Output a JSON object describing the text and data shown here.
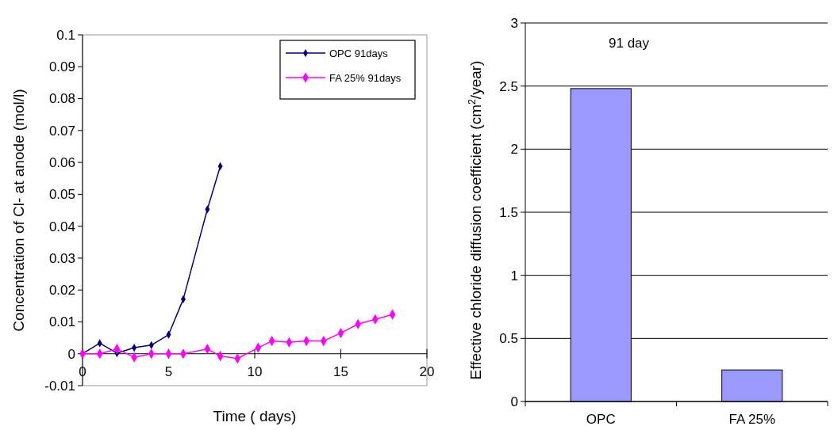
{
  "chart_data": [
    {
      "type": "line",
      "xlabel": "Time ( days)",
      "ylabel": "Concentration of Cl- at anode (mol/l)",
      "xlim": [
        0,
        20
      ],
      "xticks": [
        0,
        5,
        10,
        15,
        20
      ],
      "ylim": [
        -0.01,
        0.1
      ],
      "yticks": [
        -0.01,
        0,
        0.01,
        0.02,
        0.03,
        0.04,
        0.05,
        0.06,
        0.07,
        0.08,
        0.09,
        0.1
      ],
      "legend": "top right",
      "marker": "diamond",
      "series": [
        {
          "name": "OPC 91days",
          "color": "#000080",
          "x": [
            0,
            1,
            2,
            3,
            4,
            5,
            5.85,
            7.25,
            8
          ],
          "values": [
            0,
            0.0033,
            0.0002,
            0.0019,
            0.0027,
            0.006,
            0.0171,
            0.0453,
            0.0588
          ]
        },
        {
          "name": "FA 25% 91days",
          "color": "#ff00ff",
          "x": [
            0,
            1,
            2,
            3,
            4,
            5,
            5.85,
            7.25,
            8,
            9,
            10.2,
            11,
            12,
            13,
            14,
            15,
            16,
            17,
            18
          ],
          "values": [
            0,
            0,
            0.0015,
            -0.0011,
            0,
            0,
            0,
            0.0015,
            -0.0007,
            -0.0015,
            0.0019,
            0.004,
            0.0036,
            0.004,
            0.004,
            0.0065,
            0.0093,
            0.0108,
            0.0123
          ]
        }
      ]
    },
    {
      "type": "bar",
      "ylabel": "Effective chloride diffusion coefficient (cm$^{2}$/year)",
      "annotations": [
        "91 day"
      ],
      "categories": [
        "OPC",
        "FA 25%"
      ],
      "values": [
        2.48,
        0.25
      ],
      "color": "#9999ff",
      "ylim": [
        0,
        3
      ],
      "yticks": [
        0,
        0.5,
        1,
        1.5,
        2,
        2.5,
        3
      ],
      "grid": "y"
    }
  ]
}
